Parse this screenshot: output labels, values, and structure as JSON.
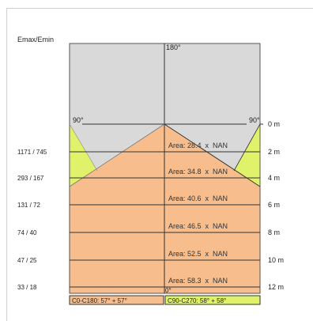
{
  "header_label": "Emax/Emin",
  "top_angle": "180°",
  "bottom_angle": "0°",
  "left_angle": "90°",
  "right_angle": "90°",
  "rows": [
    {
      "ratio": "1171 / 745",
      "distance": "2 m",
      "area": "Area: 28.4  x  NAN"
    },
    {
      "ratio": "293 / 167",
      "distance": "4 m",
      "area": "Area: 34.8  x  NAN"
    },
    {
      "ratio": "131 / 72",
      "distance": "6 m",
      "area": "Area: 40.6  x  NAN"
    },
    {
      "ratio": "74 / 40",
      "distance": "8 m",
      "area": "Area: 46.5  x  NAN"
    },
    {
      "ratio": "47 / 25",
      "distance": "10 m",
      "area": "Area: 52.5  x  NAN"
    },
    {
      "ratio": "33 / 18",
      "distance": "12 m",
      "area": "Area: 58.3  x  NAN"
    }
  ],
  "zero_distance": "0 m",
  "footer_left": "C0-C180: 57° + 57°",
  "footer_right": "C90-C270: 58° + 58°",
  "colors": {
    "sky": "#d9d9d9",
    "orange": "#f7bd8c",
    "yellow": "#dff26a",
    "grid": "#333333",
    "footer_bg": "#f7bd8c",
    "footer_bg_right": "#dff26a"
  }
}
